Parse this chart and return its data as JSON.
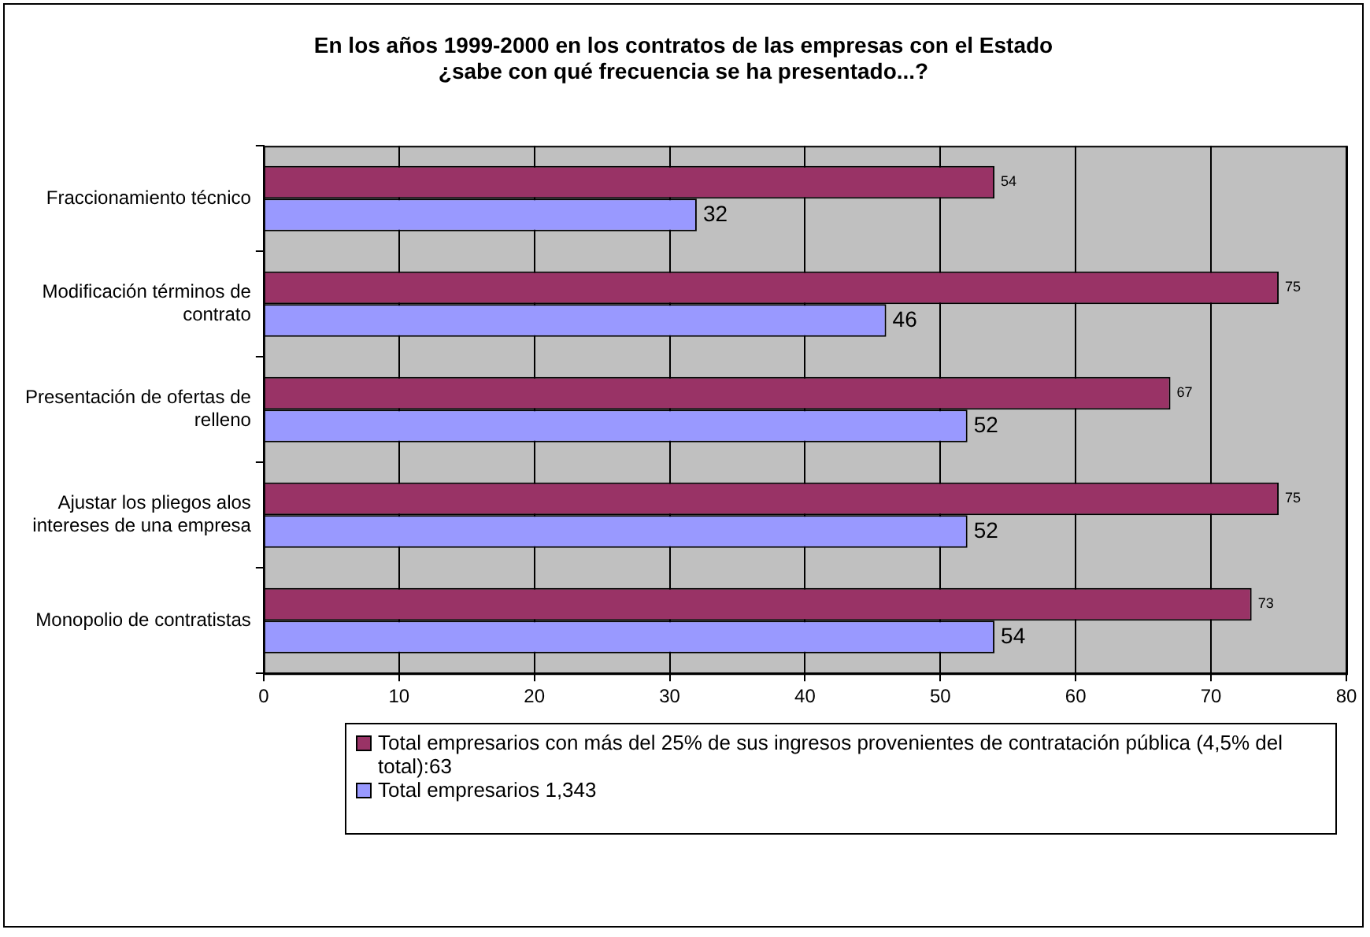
{
  "chart_data": {
    "type": "bar",
    "orientation": "horizontal",
    "title": "En los años 1999-2000 en los contratos de las empresas con el Estado\n¿sabe con qué frecuencia se ha presentado...?",
    "categories": [
      "Fraccionamiento técnico",
      "Modificación términos de contrato",
      "Presentación de ofertas de relleno",
      "Ajustar los pliegos alos intereses de una empresa",
      "Monopolio de contratistas"
    ],
    "series": [
      {
        "name": "Total empresarios con más del 25% de sus ingresos provenientes de contratación pública (4,5% del total):63",
        "color": "#993366",
        "values": [
          54,
          75,
          67,
          75,
          73
        ]
      },
      {
        "name": "Total empresarios 1,343",
        "color": "#9999ff",
        "values": [
          32,
          46,
          52,
          52,
          54
        ]
      }
    ],
    "xlim": [
      0,
      80
    ],
    "xticks": [
      0,
      10,
      20,
      30,
      40,
      50,
      60,
      70,
      80
    ],
    "grid": "x",
    "legend": "bottom",
    "data_labels": true
  }
}
